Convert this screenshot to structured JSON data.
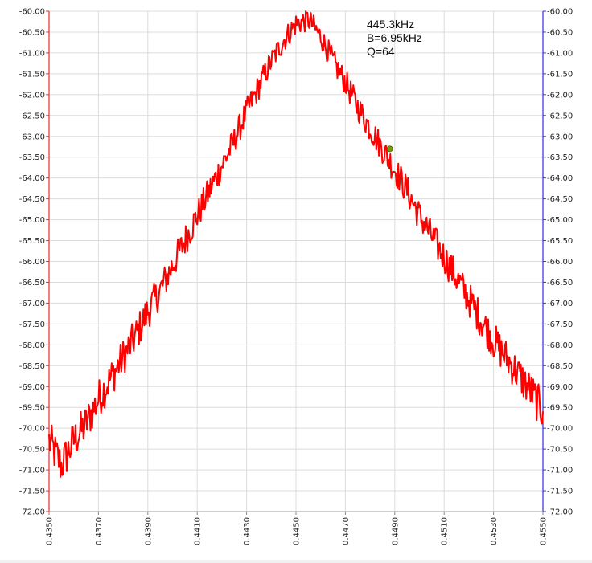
{
  "chart_data": {
    "type": "line",
    "title": "",
    "xlabel": "",
    "ylabel": "",
    "xlim": [
      0.435,
      0.455
    ],
    "ylim": [
      -72.0,
      -60.0
    ],
    "x_ticks": [
      "0.4350",
      "0.4370",
      "0.4390",
      "0.4410",
      "0.4430",
      "0.4450",
      "0.4470",
      "0.4490",
      "0.4510",
      "0.4530",
      "0.4550"
    ],
    "y_ticks": [
      "-60.00",
      "-60.50",
      "-61.00",
      "-61.50",
      "-62.00",
      "-62.50",
      "-63.00",
      "-63.50",
      "-64.00",
      "-64.50",
      "-65.00",
      "-65.50",
      "-66.00",
      "-66.50",
      "-67.00",
      "-67.50",
      "-68.00",
      "-68.50",
      "-69.00",
      "-69.50",
      "-70.00",
      "-70.50",
      "-71.00",
      "-71.50",
      "-72.00"
    ],
    "grid": true,
    "left_axis_color": "#e03030",
    "right_axis_color": "#3030e0",
    "series": [
      {
        "color": "#ff0000",
        "x": [
          0.435,
          0.4355,
          0.436,
          0.4365,
          0.437,
          0.4375,
          0.438,
          0.4385,
          0.439,
          0.4395,
          0.44,
          0.4405,
          0.441,
          0.4415,
          0.442,
          0.4425,
          0.443,
          0.4435,
          0.444,
          0.4445,
          0.445,
          0.4455,
          0.446,
          0.4465,
          0.447,
          0.4475,
          0.448,
          0.4485,
          0.449,
          0.4495,
          0.45,
          0.4505,
          0.451,
          0.4515,
          0.452,
          0.4525,
          0.453,
          0.4535,
          0.454,
          0.4545,
          0.455
        ],
        "y": [
          -70.3,
          -70.9,
          -70.3,
          -69.9,
          -69.3,
          -68.8,
          -68.3,
          -67.8,
          -67.2,
          -66.7,
          -66.1,
          -65.5,
          -64.9,
          -64.3,
          -63.7,
          -63.1,
          -62.4,
          -61.8,
          -61.2,
          -60.7,
          -60.3,
          -60.2,
          -60.6,
          -61.2,
          -61.7,
          -62.3,
          -62.8,
          -63.3,
          -63.8,
          -64.3,
          -64.9,
          -65.4,
          -65.9,
          -66.4,
          -66.9,
          -67.4,
          -67.9,
          -68.3,
          -68.7,
          -69.1,
          -69.6
        ]
      }
    ],
    "marker": {
      "x": 0.4488,
      "y": -63.3,
      "color": "#7a9a10"
    },
    "annotations": [
      "445.3kHz",
      "B=6.95kHz",
      "Q=64"
    ]
  }
}
